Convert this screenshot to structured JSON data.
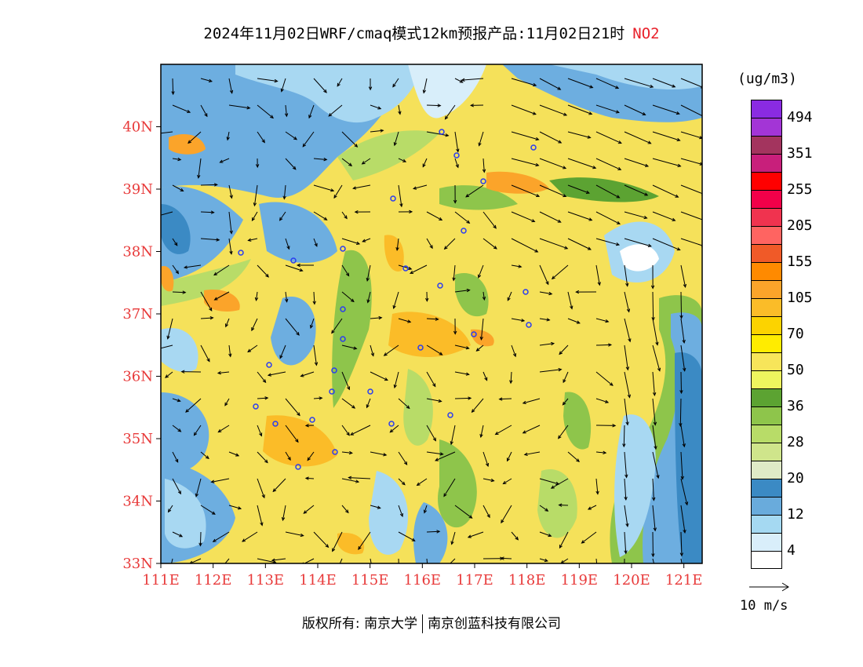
{
  "title": {
    "text": "2024年11月02日WRF/cmaq模式12km预报产品:11月02日21时",
    "pollutant": "NO2"
  },
  "map": {
    "lat_ticks": [
      {
        "value": 40,
        "label": "40N"
      },
      {
        "value": 39,
        "label": "39N"
      },
      {
        "value": 38,
        "label": "38N"
      },
      {
        "value": 37,
        "label": "37N"
      },
      {
        "value": 36,
        "label": "36N"
      },
      {
        "value": 35,
        "label": "35N"
      },
      {
        "value": 34,
        "label": "34N"
      },
      {
        "value": 33,
        "label": "33N"
      }
    ],
    "lon_ticks": [
      {
        "value": 111,
        "label": "111E"
      },
      {
        "value": 112,
        "label": "112E"
      },
      {
        "value": 113,
        "label": "113E"
      },
      {
        "value": 114,
        "label": "114E"
      },
      {
        "value": 115,
        "label": "115E"
      },
      {
        "value": 116,
        "label": "116E"
      },
      {
        "value": 117,
        "label": "117E"
      },
      {
        "value": 118,
        "label": "118E"
      },
      {
        "value": 119,
        "label": "119E"
      },
      {
        "value": 120,
        "label": "120E"
      },
      {
        "value": 121,
        "label": "121E"
      }
    ],
    "lat_range": [
      33,
      41
    ],
    "lon_range": [
      111,
      121.35
    ],
    "tick_color": "#e83a3a",
    "frame_color": "#000000"
  },
  "legend": {
    "unit": "(ug/m3)",
    "bands": [
      {
        "color": "#8a2be2"
      },
      {
        "color": "#a335d6"
      },
      {
        "color": "#a3345e"
      },
      {
        "color": "#c81f7b"
      },
      {
        "color": "#ff0000"
      },
      {
        "color": "#f20049"
      },
      {
        "color": "#f0334f"
      },
      {
        "color": "#ff6461"
      },
      {
        "color": "#f05a28"
      },
      {
        "color": "#ff8a00"
      },
      {
        "color": "#fba42a"
      },
      {
        "color": "#fbbc28"
      },
      {
        "color": "#fcd300"
      },
      {
        "color": "#ffec00"
      },
      {
        "color": "#f7e55a"
      },
      {
        "color": "#eef55e"
      },
      {
        "color": "#5ca332"
      },
      {
        "color": "#8ec54b"
      },
      {
        "color": "#b8dc68"
      },
      {
        "color": "#cfe58b"
      },
      {
        "color": "#dfeac7"
      },
      {
        "color": "#3b8ac4"
      },
      {
        "color": "#69abdc"
      },
      {
        "color": "#a5d9f2"
      },
      {
        "color": "#d9eefa"
      },
      {
        "color": "#ffffff"
      }
    ],
    "labels": [
      "494",
      "351",
      "255",
      "205",
      "155",
      "105",
      "70",
      "50",
      "36",
      "28",
      "20",
      "12",
      "4"
    ],
    "vector_label": "10 m/s"
  },
  "copyright": {
    "prefix": "版权所有:",
    "org1": "南京大学",
    "org2": "南京创蓝科技有限公司"
  }
}
